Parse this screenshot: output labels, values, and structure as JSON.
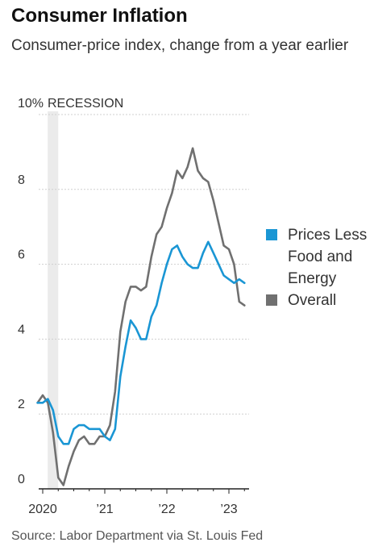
{
  "chart_data": {
    "type": "line",
    "title": "Consumer Inflation",
    "subtitle": "Consumer-price index, change from a year earlier",
    "source": "Source: Labor Department via St. Louis Fed",
    "ylim": [
      0,
      10
    ],
    "yticks": [
      0,
      2,
      4,
      6,
      8,
      10
    ],
    "ytick_labels": [
      "0",
      "2",
      "4",
      "6",
      "8",
      "10%"
    ],
    "xticks": [
      2020,
      2021,
      2022,
      2023
    ],
    "xtick_labels": [
      "2020",
      "’21",
      "’22",
      "’23"
    ],
    "grid": true,
    "recession": {
      "label": "RECESSION",
      "start": 2020.08,
      "end": 2020.25
    },
    "legend_position": "right",
    "x": [
      "2019-12",
      "2020-01",
      "2020-02",
      "2020-03",
      "2020-04",
      "2020-05",
      "2020-06",
      "2020-07",
      "2020-08",
      "2020-09",
      "2020-10",
      "2020-11",
      "2020-12",
      "2021-01",
      "2021-02",
      "2021-03",
      "2021-04",
      "2021-05",
      "2021-06",
      "2021-07",
      "2021-08",
      "2021-09",
      "2021-10",
      "2021-11",
      "2021-12",
      "2022-01",
      "2022-02",
      "2022-03",
      "2022-04",
      "2022-05",
      "2022-06",
      "2022-07",
      "2022-08",
      "2022-09",
      "2022-10",
      "2022-11",
      "2022-12",
      "2023-01",
      "2023-02",
      "2023-03",
      "2023-04"
    ],
    "series": [
      {
        "name": "Prices Less Food and Energy",
        "color": "#1a96d4",
        "values": [
          2.3,
          2.3,
          2.4,
          2.1,
          1.4,
          1.2,
          1.2,
          1.6,
          1.7,
          1.7,
          1.6,
          1.6,
          1.6,
          1.4,
          1.3,
          1.6,
          3.0,
          3.8,
          4.5,
          4.3,
          4.0,
          4.0,
          4.6,
          4.9,
          5.5,
          6.0,
          6.4,
          6.5,
          6.2,
          6.0,
          5.9,
          5.9,
          6.3,
          6.6,
          6.3,
          6.0,
          5.7,
          5.6,
          5.5,
          5.6,
          5.5
        ]
      },
      {
        "name": "Overall",
        "color": "#707070",
        "values": [
          2.3,
          2.5,
          2.3,
          1.5,
          0.3,
          0.1,
          0.6,
          1.0,
          1.3,
          1.4,
          1.2,
          1.2,
          1.4,
          1.4,
          1.7,
          2.6,
          4.2,
          5.0,
          5.4,
          5.4,
          5.3,
          5.4,
          6.2,
          6.8,
          7.0,
          7.5,
          7.9,
          8.5,
          8.3,
          8.6,
          9.1,
          8.5,
          8.3,
          8.2,
          7.7,
          7.1,
          6.5,
          6.4,
          6.0,
          5.0,
          4.9
        ]
      }
    ]
  }
}
